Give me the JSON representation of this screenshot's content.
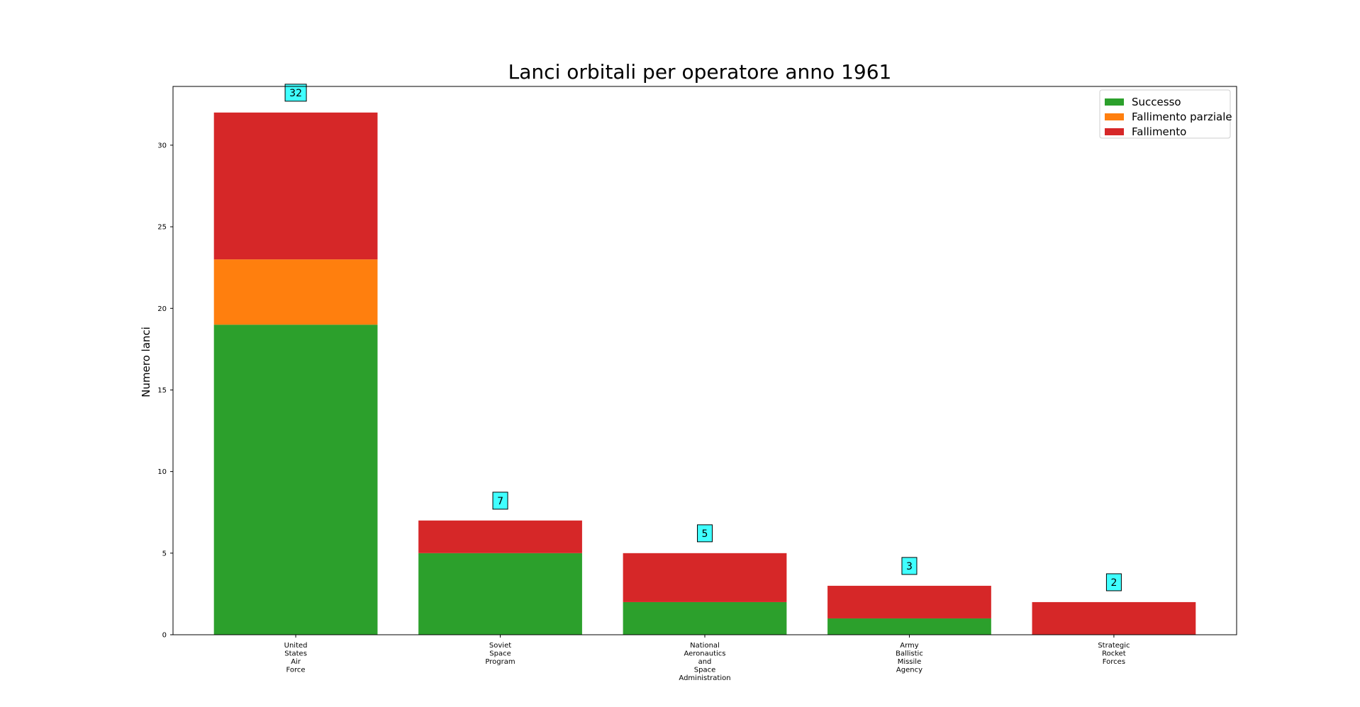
{
  "chart_data": {
    "type": "bar",
    "stacked": true,
    "title": "Lanci orbitali per operatore anno 1961",
    "xlabel": "",
    "ylabel": "Numero lanci",
    "ylim": [
      0,
      33.6
    ],
    "yticks": [
      0,
      5,
      10,
      15,
      20,
      25,
      30
    ],
    "grid": false,
    "legend_position": "top-right",
    "categories": [
      [
        "United",
        "States",
        "Air",
        "Force"
      ],
      [
        "Soviet",
        "Space",
        "Program"
      ],
      [
        "National",
        "Aeronautics",
        "and",
        "Space",
        "Administration"
      ],
      [
        "Army",
        "Ballistic",
        "Missile",
        "Agency"
      ],
      [
        "Strategic",
        "Rocket",
        "Forces"
      ]
    ],
    "series": [
      {
        "name": "Successo",
        "color": "#2ca02c",
        "values": [
          19,
          5,
          2,
          1,
          0
        ]
      },
      {
        "name": "Fallimento parziale",
        "color": "#ff7f0e",
        "values": [
          4,
          0,
          0,
          0,
          0
        ]
      },
      {
        "name": "Fallimento",
        "color": "#d62728",
        "values": [
          9,
          2,
          3,
          2,
          2
        ]
      }
    ],
    "totals": [
      32,
      7,
      5,
      3,
      2
    ],
    "total_label_color": "#40ffff"
  }
}
